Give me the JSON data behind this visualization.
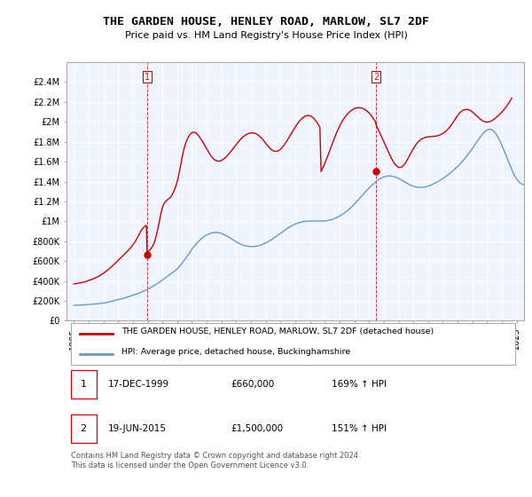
{
  "title": "THE GARDEN HOUSE, HENLEY ROAD, MARLOW, SL7 2DF",
  "subtitle": "Price paid vs. HM Land Registry's House Price Index (HPI)",
  "legend_line1": "THE GARDEN HOUSE, HENLEY ROAD, MARLOW, SL7 2DF (detached house)",
  "legend_line2": "HPI: Average price, detached house, Buckinghamshire",
  "table_row1": [
    "1",
    "17-DEC-1999",
    "£660,000",
    "169% ↑ HPI"
  ],
  "table_row2": [
    "2",
    "19-JUN-2015",
    "£1,500,000",
    "151% ↑ HPI"
  ],
  "footnote": "Contains HM Land Registry data © Crown copyright and database right 2024.\nThis data is licensed under the Open Government Licence v3.0.",
  "property_color": "#cc0000",
  "hpi_color": "#6699cc",
  "marker_color": "#cc0000",
  "sale1_x": 1999.96,
  "sale1_y": 660000,
  "sale2_x": 2015.47,
  "sale2_y": 1500000,
  "ylim": [
    0,
    2600000
  ],
  "yticks": [
    0,
    200000,
    400000,
    600000,
    800000,
    1000000,
    1200000,
    1400000,
    1600000,
    1800000,
    2000000,
    2200000,
    2400000
  ],
  "ytick_labels": [
    "£0",
    "£200K",
    "£400K",
    "£600K",
    "£800K",
    "£1M",
    "£1.2M",
    "£1.4M",
    "£1.6M",
    "£1.8M",
    "£2M",
    "£2.2M",
    "£2.4M"
  ],
  "xlim": [
    1994.5,
    2025.5
  ],
  "xticks": [
    1995,
    1996,
    1997,
    1998,
    1999,
    2000,
    2001,
    2002,
    2003,
    2004,
    2005,
    2006,
    2007,
    2008,
    2009,
    2010,
    2011,
    2012,
    2013,
    2014,
    2015,
    2016,
    2017,
    2018,
    2019,
    2020,
    2021,
    2022,
    2023,
    2024,
    2025
  ],
  "hpi_start_year": 1995.0,
  "hpi_month_step": 0.08333,
  "hpi_values": [
    155000,
    155500,
    156000,
    156500,
    157000,
    158000,
    158500,
    159000,
    160000,
    161000,
    162000,
    163000,
    163500,
    164000,
    165000,
    166000,
    167000,
    168000,
    169500,
    171000,
    172500,
    174000,
    175500,
    177000,
    178000,
    180000,
    182000,
    185000,
    188000,
    191000,
    194000,
    197000,
    200000,
    203000,
    206000,
    209000,
    212000,
    215000,
    218000,
    221000,
    224000,
    228000,
    232000,
    236000,
    240000,
    244000,
    248000,
    252000,
    256000,
    260000,
    264000,
    269000,
    274000,
    279000,
    284000,
    289000,
    294000,
    299000,
    305000,
    311000,
    317000,
    323000,
    330000,
    337000,
    344000,
    351000,
    359000,
    367000,
    375000,
    383000,
    392000,
    401000,
    410000,
    418000,
    427000,
    436000,
    445000,
    454000,
    463000,
    472000,
    481000,
    491000,
    501000,
    511000,
    521000,
    535000,
    549000,
    564000,
    580000,
    596000,
    613000,
    630000,
    648000,
    666000,
    684000,
    702000,
    720000,
    736000,
    752000,
    766000,
    780000,
    793000,
    806000,
    818000,
    829000,
    839000,
    848000,
    856000,
    863000,
    869000,
    874000,
    878000,
    882000,
    885000,
    887000,
    888000,
    888000,
    887000,
    885000,
    882000,
    878000,
    873000,
    867000,
    861000,
    855000,
    848000,
    841000,
    833000,
    825000,
    817000,
    809000,
    800000,
    792000,
    785000,
    779000,
    773000,
    768000,
    763000,
    759000,
    755000,
    752000,
    750000,
    748000,
    747000,
    746000,
    746000,
    747000,
    748000,
    750000,
    752000,
    755000,
    758000,
    762000,
    766000,
    771000,
    776000,
    782000,
    788000,
    795000,
    802000,
    810000,
    818000,
    826000,
    835000,
    844000,
    853000,
    862000,
    871000,
    880000,
    889000,
    898000,
    907000,
    916000,
    924000,
    932000,
    940000,
    947000,
    954000,
    960000,
    966000,
    972000,
    977000,
    982000,
    986000,
    990000,
    993000,
    996000,
    998000,
    1000000,
    1001000,
    1002000,
    1002000,
    1003000,
    1003000,
    1003000,
    1003000,
    1003000,
    1003000,
    1003000,
    1003000,
    1003000,
    1003000,
    1003000,
    1003000,
    1004000,
    1005000,
    1007000,
    1009000,
    1012000,
    1015000,
    1019000,
    1023000,
    1028000,
    1033000,
    1039000,
    1045000,
    1052000,
    1059000,
    1067000,
    1075000,
    1084000,
    1093000,
    1103000,
    1113000,
    1124000,
    1135000,
    1147000,
    1159000,
    1172000,
    1185000,
    1198000,
    1212000,
    1226000,
    1240000,
    1254000,
    1268000,
    1282000,
    1296000,
    1310000,
    1323000,
    1336000,
    1348000,
    1360000,
    1371000,
    1382000,
    1392000,
    1402000,
    1411000,
    1420000,
    1428000,
    1435000,
    1441000,
    1446000,
    1450000,
    1453000,
    1455000,
    1456000,
    1456000,
    1455000,
    1453000,
    1450000,
    1447000,
    1442000,
    1437000,
    1431000,
    1424000,
    1417000,
    1410000,
    1403000,
    1395000,
    1388000,
    1381000,
    1374000,
    1368000,
    1362000,
    1357000,
    1352000,
    1348000,
    1345000,
    1343000,
    1341000,
    1340000,
    1340000,
    1341000,
    1342000,
    1344000,
    1347000,
    1350000,
    1354000,
    1358000,
    1363000,
    1368000,
    1374000,
    1380000,
    1386000,
    1393000,
    1400000,
    1407000,
    1415000,
    1422000,
    1430000,
    1438000,
    1447000,
    1456000,
    1465000,
    1475000,
    1485000,
    1495000,
    1506000,
    1517000,
    1528000,
    1539000,
    1551000,
    1563000,
    1576000,
    1590000,
    1604000,
    1618000,
    1633000,
    1649000,
    1665000,
    1681000,
    1698000,
    1715000,
    1732000,
    1750000,
    1768000,
    1786000,
    1804000,
    1822000,
    1840000,
    1857000,
    1873000,
    1887000,
    1900000,
    1910000,
    1918000,
    1923000,
    1925000,
    1924000,
    1919000,
    1910000,
    1898000,
    1882000,
    1863000,
    1842000,
    1818000,
    1792000,
    1764000,
    1735000,
    1705000,
    1674000,
    1643000,
    1612000,
    1581000,
    1550000,
    1521000,
    1494000,
    1469000,
    1446000,
    1426000,
    1409000,
    1395000,
    1384000,
    1376000,
    1371000,
    1368000,
    1368000,
    1370000,
    1374000,
    1380000,
    1387000,
    1395000,
    1405000,
    1415000,
    1426000,
    1437000,
    1449000,
    1460000,
    1471000,
    1481000,
    1491000
  ],
  "prop_years": [
    1995.0,
    1995.083,
    1995.167,
    1995.25,
    1995.333,
    1995.417,
    1995.5,
    1995.583,
    1995.667,
    1995.75,
    1995.833,
    1995.917,
    1996.0,
    1996.083,
    1996.167,
    1996.25,
    1996.333,
    1996.417,
    1996.5,
    1996.583,
    1996.667,
    1996.75,
    1996.833,
    1996.917,
    1997.0,
    1997.083,
    1997.167,
    1997.25,
    1997.333,
    1997.417,
    1997.5,
    1997.583,
    1997.667,
    1997.75,
    1997.833,
    1997.917,
    1998.0,
    1998.083,
    1998.167,
    1998.25,
    1998.333,
    1998.417,
    1998.5,
    1998.583,
    1998.667,
    1998.75,
    1998.833,
    1998.917,
    1999.0,
    1999.083,
    1999.167,
    1999.25,
    1999.333,
    1999.417,
    1999.5,
    1999.583,
    1999.667,
    1999.75,
    1999.833,
    1999.917,
    1999.96,
    2000.0,
    2000.083,
    2000.167,
    2000.25,
    2000.333,
    2000.417,
    2000.5,
    2000.583,
    2000.667,
    2000.75,
    2000.833,
    2000.917,
    2001.0,
    2001.083,
    2001.167,
    2001.25,
    2001.333,
    2001.417,
    2001.5,
    2001.583,
    2001.667,
    2001.75,
    2001.833,
    2001.917,
    2002.0,
    2002.083,
    2002.167,
    2002.25,
    2002.333,
    2002.417,
    2002.5,
    2002.583,
    2002.667,
    2002.75,
    2002.833,
    2002.917,
    2003.0,
    2003.083,
    2003.167,
    2003.25,
    2003.333,
    2003.417,
    2003.5,
    2003.583,
    2003.667,
    2003.75,
    2003.833,
    2003.917,
    2004.0,
    2004.083,
    2004.167,
    2004.25,
    2004.333,
    2004.417,
    2004.5,
    2004.583,
    2004.667,
    2004.75,
    2004.833,
    2004.917,
    2005.0,
    2005.083,
    2005.167,
    2005.25,
    2005.333,
    2005.417,
    2005.5,
    2005.583,
    2005.667,
    2005.75,
    2005.833,
    2005.917,
    2006.0,
    2006.083,
    2006.167,
    2006.25,
    2006.333,
    2006.417,
    2006.5,
    2006.583,
    2006.667,
    2006.75,
    2006.833,
    2006.917,
    2007.0,
    2007.083,
    2007.167,
    2007.25,
    2007.333,
    2007.417,
    2007.5,
    2007.583,
    2007.667,
    2007.75,
    2007.833,
    2007.917,
    2008.0,
    2008.083,
    2008.167,
    2008.25,
    2008.333,
    2008.417,
    2008.5,
    2008.583,
    2008.667,
    2008.75,
    2008.833,
    2008.917,
    2009.0,
    2009.083,
    2009.167,
    2009.25,
    2009.333,
    2009.417,
    2009.5,
    2009.583,
    2009.667,
    2009.75,
    2009.833,
    2009.917,
    2010.0,
    2010.083,
    2010.167,
    2010.25,
    2010.333,
    2010.417,
    2010.5,
    2010.583,
    2010.667,
    2010.75,
    2010.833,
    2010.917,
    2011.0,
    2011.083,
    2011.167,
    2011.25,
    2011.333,
    2011.417,
    2011.5,
    2011.583,
    2011.667,
    2011.75,
    2011.833,
    2011.917,
    2012.0,
    2012.083,
    2012.167,
    2012.25,
    2012.333,
    2012.417,
    2012.5,
    2012.583,
    2012.667,
    2012.75,
    2012.833,
    2012.917,
    2013.0,
    2013.083,
    2013.167,
    2013.25,
    2013.333,
    2013.417,
    2013.5,
    2013.583,
    2013.667,
    2013.75,
    2013.833,
    2013.917,
    2014.0,
    2014.083,
    2014.167,
    2014.25,
    2014.333,
    2014.417,
    2014.5,
    2014.583,
    2014.667,
    2014.75,
    2014.833,
    2014.917,
    2015.0,
    2015.083,
    2015.167,
    2015.25,
    2015.333,
    2015.417,
    2015.47,
    2015.5,
    2015.583,
    2015.667,
    2015.75,
    2015.833,
    2015.917,
    2016.0,
    2016.083,
    2016.167,
    2016.25,
    2016.333,
    2016.417,
    2016.5,
    2016.583,
    2016.667,
    2016.75,
    2016.833,
    2016.917,
    2017.0,
    2017.083,
    2017.167,
    2017.25,
    2017.333,
    2017.417,
    2017.5,
    2017.583,
    2017.667,
    2017.75,
    2017.833,
    2017.917,
    2018.0,
    2018.083,
    2018.167,
    2018.25,
    2018.333,
    2018.417,
    2018.5,
    2018.583,
    2018.667,
    2018.75,
    2018.833,
    2018.917,
    2019.0,
    2019.083,
    2019.167,
    2019.25,
    2019.333,
    2019.417,
    2019.5,
    2019.583,
    2019.667,
    2019.75,
    2019.833,
    2019.917,
    2020.0,
    2020.083,
    2020.167,
    2020.25,
    2020.333,
    2020.417,
    2020.5,
    2020.583,
    2020.667,
    2020.75,
    2020.833,
    2020.917,
    2021.0,
    2021.083,
    2021.167,
    2021.25,
    2021.333,
    2021.417,
    2021.5,
    2021.583,
    2021.667,
    2021.75,
    2021.833,
    2021.917,
    2022.0,
    2022.083,
    2022.167,
    2022.25,
    2022.333,
    2022.417,
    2022.5,
    2022.583,
    2022.667,
    2022.75,
    2022.833,
    2022.917,
    2023.0,
    2023.083,
    2023.167,
    2023.25,
    2023.333,
    2023.417,
    2023.5,
    2023.583,
    2023.667,
    2023.75,
    2023.833,
    2023.917,
    2024.0,
    2024.083,
    2024.167,
    2024.25,
    2024.333,
    2024.417,
    2024.5,
    2024.583,
    2024.667,
    2024.75,
    2024.833,
    2024.917,
    2025.0
  ],
  "prop_values": [
    370000,
    372000,
    374000,
    376000,
    378000,
    380000,
    382000,
    385000,
    388000,
    392000,
    396000,
    400000,
    404000,
    408000,
    413000,
    418000,
    423000,
    428000,
    434000,
    440000,
    447000,
    454000,
    461000,
    469000,
    477000,
    486000,
    495000,
    505000,
    515000,
    526000,
    537000,
    548000,
    559000,
    571000,
    583000,
    595000,
    607000,
    619000,
    631000,
    643000,
    655000,
    667000,
    679000,
    692000,
    705000,
    719000,
    733000,
    748000,
    763000,
    780000,
    800000,
    820000,
    843000,
    867000,
    892000,
    912000,
    928000,
    942000,
    952000,
    958000,
    660000,
    685000,
    700000,
    715000,
    730000,
    750000,
    775000,
    810000,
    855000,
    910000,
    970000,
    1030000,
    1090000,
    1140000,
    1170000,
    1190000,
    1205000,
    1215000,
    1225000,
    1235000,
    1250000,
    1270000,
    1295000,
    1325000,
    1360000,
    1400000,
    1450000,
    1510000,
    1575000,
    1640000,
    1700000,
    1750000,
    1790000,
    1820000,
    1845000,
    1865000,
    1880000,
    1890000,
    1895000,
    1895000,
    1890000,
    1880000,
    1866000,
    1850000,
    1832000,
    1813000,
    1793000,
    1772000,
    1750000,
    1728000,
    1706000,
    1686000,
    1667000,
    1650000,
    1635000,
    1623000,
    1614000,
    1608000,
    1605000,
    1605000,
    1607000,
    1612000,
    1619000,
    1628000,
    1638000,
    1650000,
    1663000,
    1677000,
    1692000,
    1708000,
    1724000,
    1740000,
    1756000,
    1772000,
    1788000,
    1803000,
    1817000,
    1830000,
    1842000,
    1853000,
    1862000,
    1870000,
    1877000,
    1882000,
    1886000,
    1888000,
    1889000,
    1888000,
    1885000,
    1880000,
    1873000,
    1865000,
    1855000,
    1843000,
    1830000,
    1816000,
    1800000,
    1784000,
    1768000,
    1753000,
    1739000,
    1727000,
    1717000,
    1710000,
    1705000,
    1703000,
    1704000,
    1708000,
    1715000,
    1725000,
    1737000,
    1752000,
    1768000,
    1786000,
    1805000,
    1825000,
    1845000,
    1866000,
    1887000,
    1908000,
    1928000,
    1948000,
    1967000,
    1985000,
    2001000,
    2016000,
    2029000,
    2040000,
    2049000,
    2056000,
    2061000,
    2063000,
    2063000,
    2060000,
    2054000,
    2046000,
    2035000,
    2021000,
    2005000,
    1987000,
    1967000,
    1946000,
    1500000,
    1525000,
    1552000,
    1581000,
    1612000,
    1644000,
    1677000,
    1710000,
    1743000,
    1776000,
    1809000,
    1841000,
    1872000,
    1901000,
    1929000,
    1955000,
    1979000,
    2001000,
    2022000,
    2041000,
    2057000,
    2072000,
    2086000,
    2098000,
    2109000,
    2118000,
    2126000,
    2132000,
    2137000,
    2140000,
    2142000,
    2142000,
    2141000,
    2138000,
    2134000,
    2128000,
    2121000,
    2112000,
    2101000,
    2089000,
    2075000,
    2059000,
    2042000,
    2023000,
    2003000,
    1981000,
    1958000,
    1934000,
    1909000,
    1883000,
    1856000,
    1828000,
    1800000,
    1772000,
    1744000,
    1716000,
    1689000,
    1663000,
    1638000,
    1615000,
    1594000,
    1576000,
    1561000,
    1550000,
    1543000,
    1541000,
    1543000,
    1550000,
    1561000,
    1576000,
    1594000,
    1615000,
    1638000,
    1662000,
    1686000,
    1709000,
    1731000,
    1751000,
    1769000,
    1785000,
    1799000,
    1811000,
    1821000,
    1829000,
    1835000,
    1840000,
    1844000,
    1847000,
    1849000,
    1850000,
    1851000,
    1852000,
    1853000,
    1854000,
    1856000,
    1858000,
    1861000,
    1865000,
    1870000,
    1876000,
    1883000,
    1891000,
    1901000,
    1912000,
    1924000,
    1938000,
    1953000,
    1970000,
    1988000,
    2007000,
    2026000,
    2045000,
    2063000,
    2079000,
    2093000,
    2104000,
    2113000,
    2119000,
    2123000,
    2125000,
    2124000,
    2121000,
    2116000,
    2109000,
    2100000,
    2089000,
    2078000,
    2066000,
    2054000,
    2042000,
    2031000,
    2021000,
    2013000,
    2006000,
    2001000,
    1998000,
    1997000,
    1998000,
    2001000,
    2006000,
    2013000,
    2021000,
    2030000,
    2040000,
    2050000,
    2061000,
    2073000,
    2085000,
    2098000,
    2112000,
    2127000,
    2143000,
    2160000,
    2178000,
    2197000,
    2217000,
    2238000
  ]
}
